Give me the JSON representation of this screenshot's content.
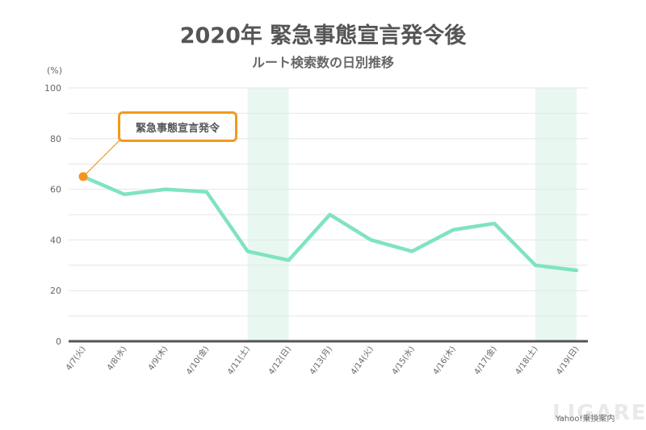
{
  "chart_data": {
    "type": "line",
    "title": "2020年 緊急事態宣言発令後",
    "subtitle": "ルート検索数の日別推移",
    "unit_label": "(%)",
    "x": [
      "4/7(火)",
      "4/8(水)",
      "4/9(木)",
      "4/10(金)",
      "4/11(土)",
      "4/12(日)",
      "4/13(月)",
      "4/14(火)",
      "4/15(水)",
      "4/16(木)",
      "4/17(金)",
      "4/18(土)",
      "4/19(日)"
    ],
    "series": [
      {
        "values": [
          65,
          58,
          60,
          59,
          35.5,
          32,
          50,
          40,
          35.5,
          44,
          46.5,
          30,
          28
        ]
      }
    ],
    "ylim": [
      0,
      100
    ],
    "yticks": [
      0,
      20,
      40,
      60,
      80,
      100
    ],
    "weekend_highlights": [
      [
        "4/11(土)",
        "4/12(日)"
      ],
      [
        "4/18(土)",
        "4/19(日)"
      ]
    ],
    "annotation": {
      "label": "緊急事態宣言発令",
      "point": "4/7(火)"
    },
    "grid": true,
    "colors": {
      "line": "#7fe3c1",
      "highlight": "#e8f8f1",
      "marker": "#f7941d",
      "axis": "#555555",
      "grid": "#e6e6e6"
    }
  },
  "source": "Yahoo!乗換案内",
  "logo": "LIGARE"
}
